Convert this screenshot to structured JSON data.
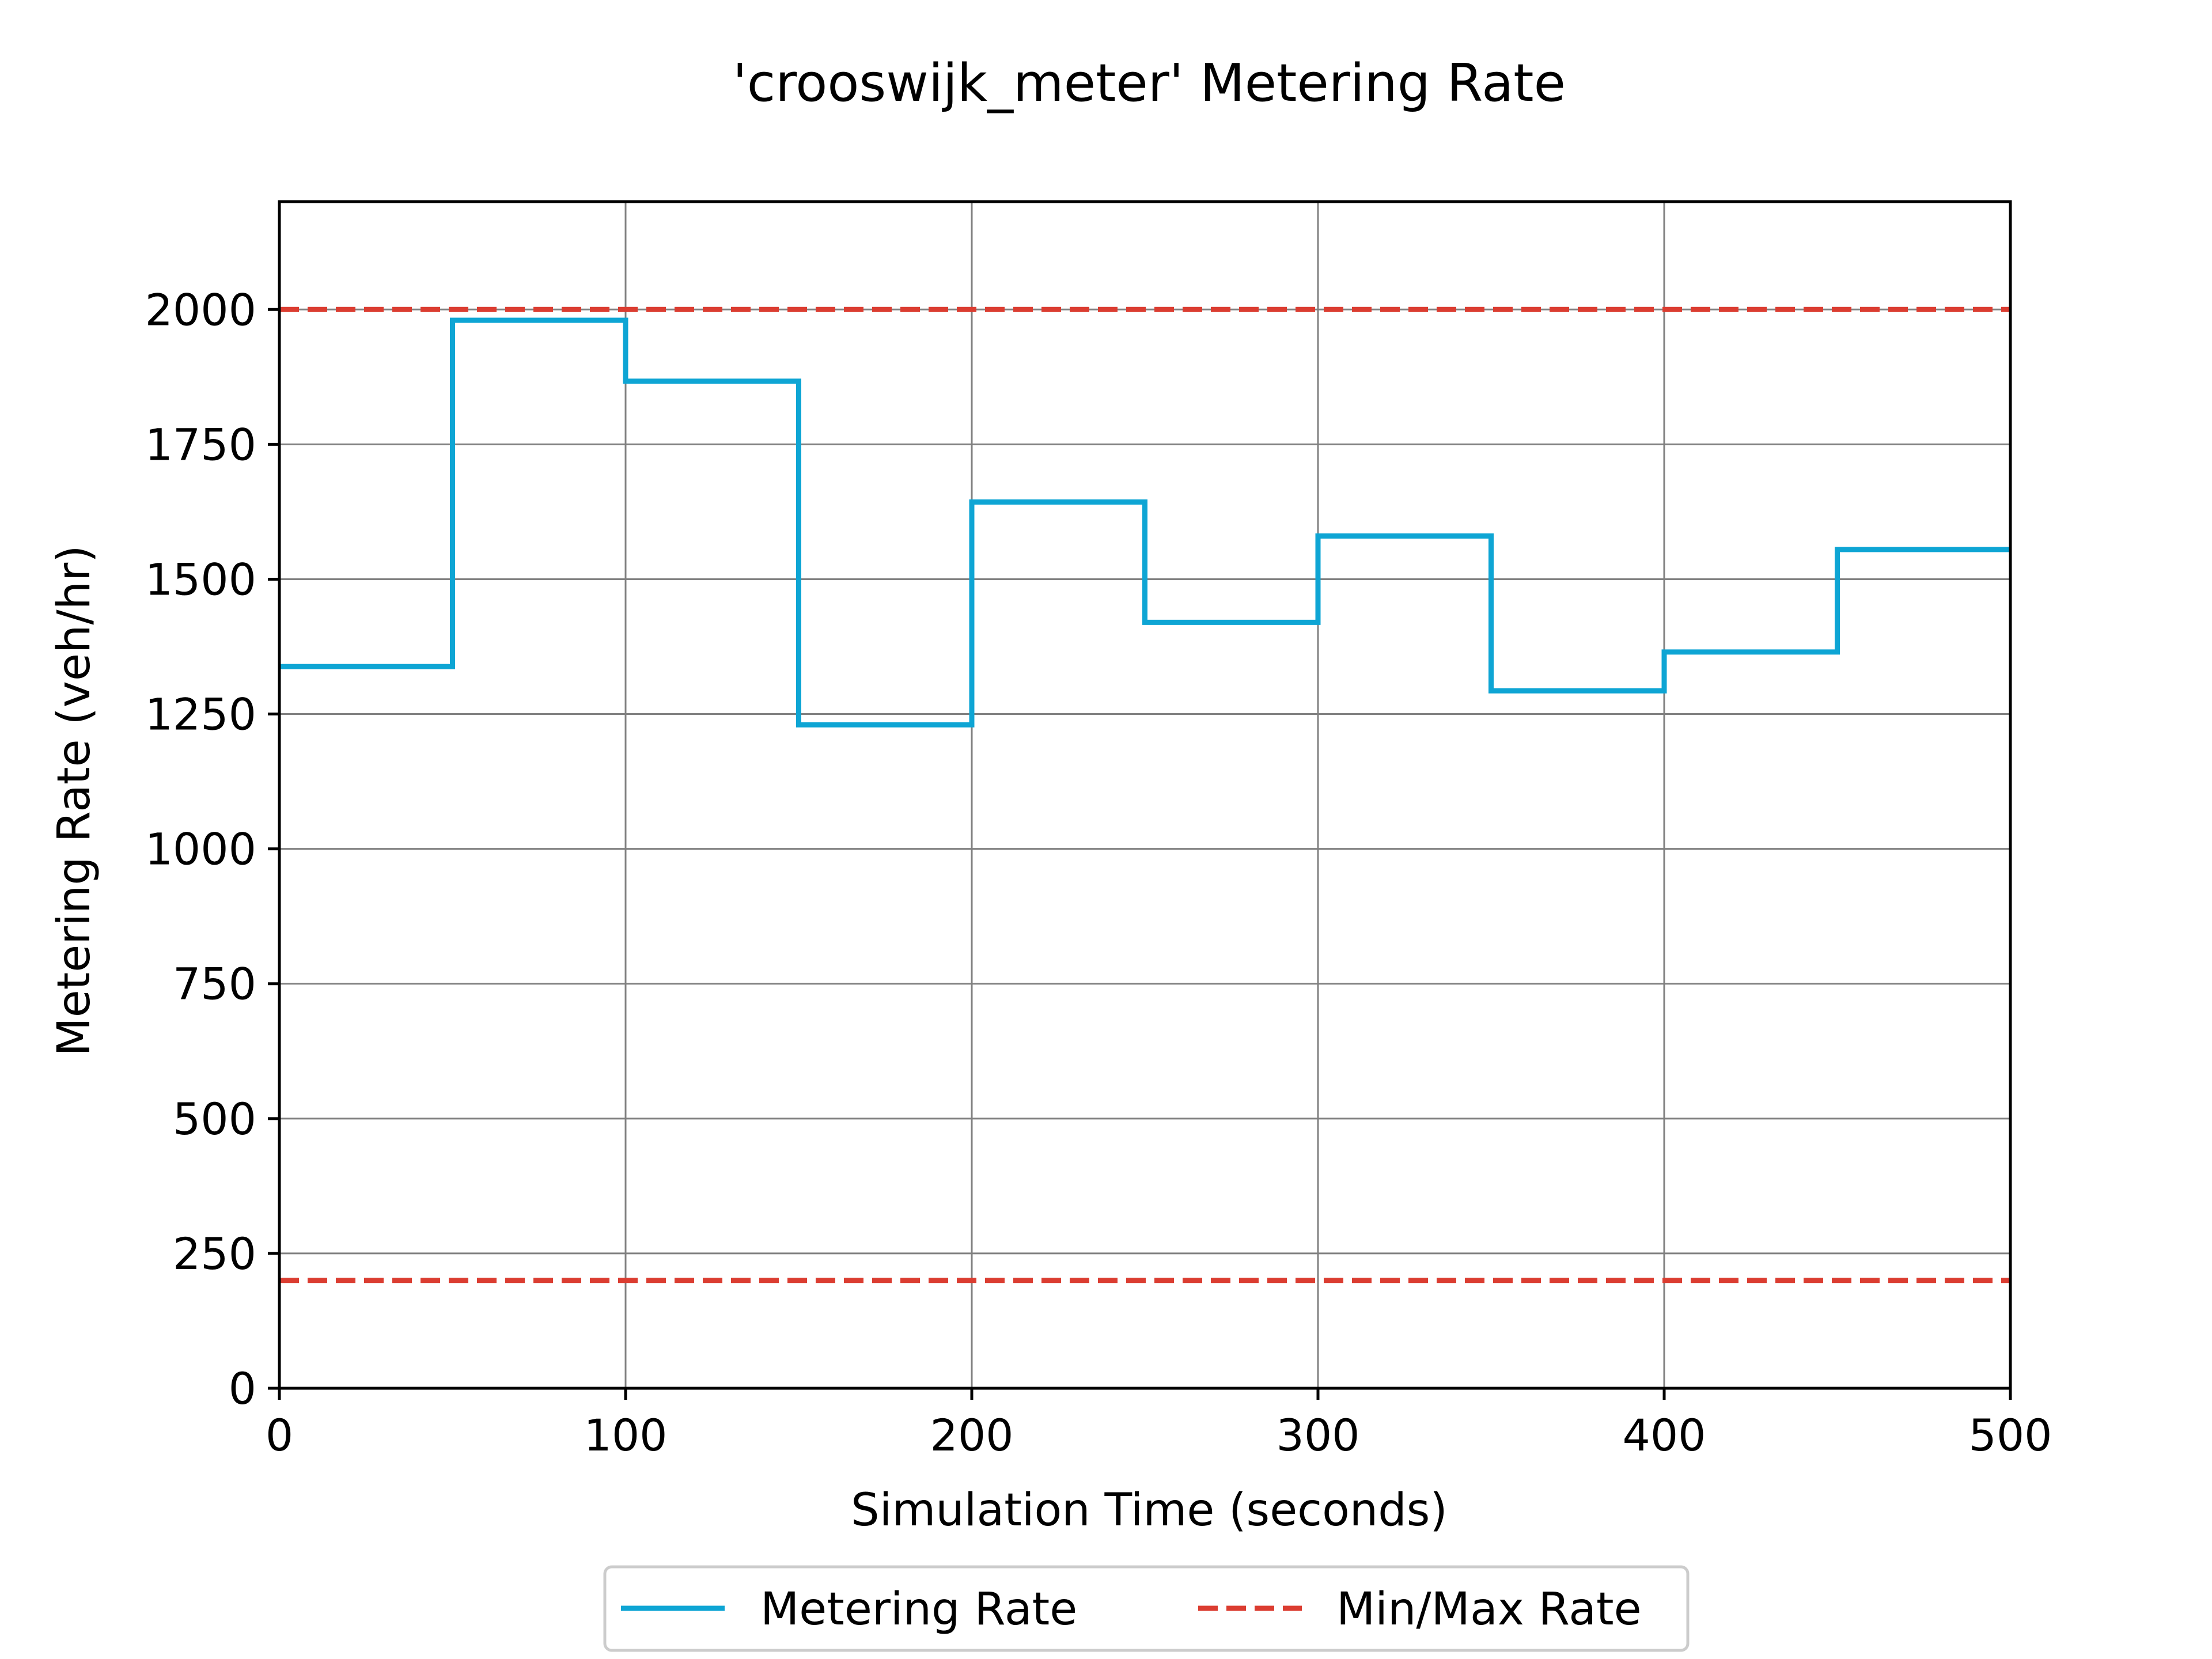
{
  "chart_data": {
    "type": "line",
    "title": "'crooswijk_meter' Metering Rate",
    "xlabel": "Simulation Time (seconds)",
    "ylabel": "Metering Rate (veh/hr)",
    "xlim": [
      0,
      500
    ],
    "ylim": [
      0,
      2200
    ],
    "xticks": [
      0,
      100,
      200,
      300,
      400,
      500
    ],
    "yticks": [
      0,
      250,
      500,
      750,
      1000,
      1250,
      1500,
      1750,
      2000
    ],
    "xtick_labels": [
      "0",
      "100",
      "200",
      "300",
      "400",
      "500"
    ],
    "ytick_labels": [
      "0",
      "250",
      "500",
      "750",
      "1000",
      "1250",
      "1500",
      "1750",
      "2000"
    ],
    "grid": true,
    "legend_position": "bottom-center",
    "series": [
      {
        "name": "Metering Rate",
        "style": "step",
        "color": "#0ea5d4",
        "x": [
          0,
          50,
          100,
          150,
          200,
          250,
          300,
          350,
          400,
          450,
          500
        ],
        "y": [
          1338,
          1980,
          1867,
          1230,
          1643,
          1420,
          1580,
          1293,
          1365,
          1555,
          1555
        ]
      },
      {
        "name": "Min/Max Rate",
        "style": "dashed",
        "color": "#db3d31",
        "lines": [
          200,
          2000
        ]
      }
    ]
  }
}
